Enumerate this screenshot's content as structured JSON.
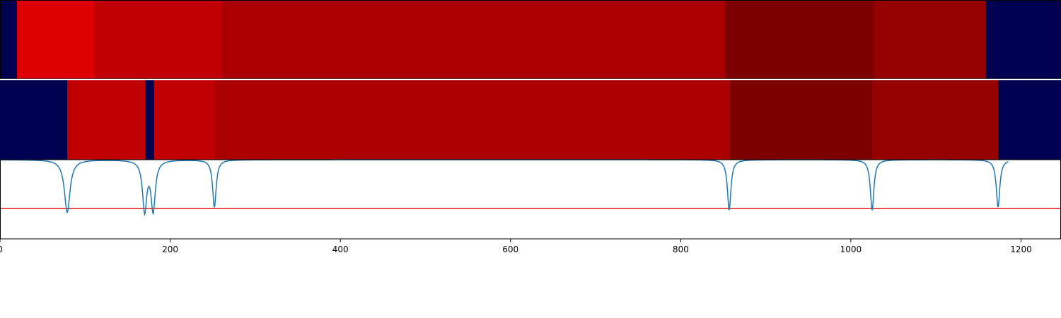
{
  "chart_data": {
    "type": "heatmap",
    "title": "",
    "xlabel": "",
    "ylabel": "",
    "xlim": [
      0,
      1247
    ],
    "x_ticks": [
      0,
      200,
      400,
      600,
      800,
      1000,
      1200
    ],
    "tracks": [
      {
        "segments": [
          {
            "start": 0,
            "end": 20,
            "color": "#000050"
          },
          {
            "start": 20,
            "end": 111,
            "color": "#dc0000"
          },
          {
            "start": 111,
            "end": 261,
            "color": "#c00000"
          },
          {
            "start": 261,
            "end": 852,
            "color": "#aa0000"
          },
          {
            "start": 852,
            "end": 1027,
            "color": "#7d0000"
          },
          {
            "start": 1027,
            "end": 1159,
            "color": "#950000"
          },
          {
            "start": 1159,
            "end": 1247,
            "color": "#000050"
          }
        ]
      },
      {
        "segments": [
          {
            "start": 0,
            "end": 79,
            "color": "#000050"
          },
          {
            "start": 79,
            "end": 171,
            "color": "#c00000"
          },
          {
            "start": 171,
            "end": 181,
            "color": "#000050"
          },
          {
            "start": 181,
            "end": 253,
            "color": "#c00000"
          },
          {
            "start": 253,
            "end": 858,
            "color": "#aa0000"
          },
          {
            "start": 858,
            "end": 1025,
            "color": "#7d0000"
          },
          {
            "start": 1025,
            "end": 1173,
            "color": "#950000"
          },
          {
            "start": 1173,
            "end": 1247,
            "color": "#000050"
          }
        ]
      }
    ],
    "signal": {
      "baseline": 1.0,
      "line_color": "#1f77b4",
      "dips": [
        {
          "center": 79,
          "depth": 0.73,
          "width": 4
        },
        {
          "center": 170,
          "depth": 0.7,
          "width": 3
        },
        {
          "center": 180,
          "depth": 0.69,
          "width": 3
        },
        {
          "center": 252,
          "depth": 0.66,
          "width": 2.5
        },
        {
          "center": 857,
          "depth": 0.7,
          "width": 2.5
        },
        {
          "center": 1025,
          "depth": 0.7,
          "width": 2.5
        },
        {
          "center": 1173,
          "depth": 0.66,
          "width": 2.5
        }
      ],
      "ylim": [
        -0.1,
        1.0
      ],
      "threshold": 0.32,
      "threshold_color": "#e41a1c"
    }
  }
}
